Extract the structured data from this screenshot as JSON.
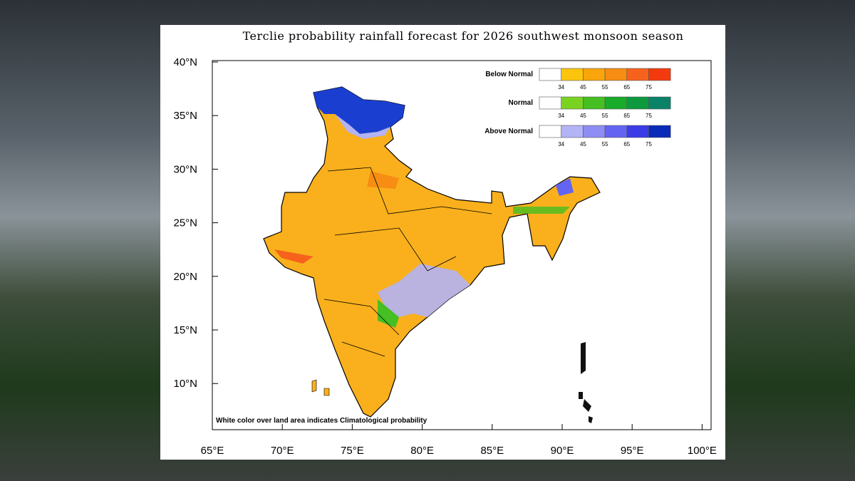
{
  "title": "Terclie probability rainfall forecast for 2026 southwest monsoon  season",
  "lat_labels": [
    "40°N",
    "35°N",
    "30°N",
    "25°N",
    "20°N",
    "15°N",
    "10°N"
  ],
  "lon_labels": [
    "65°E",
    "70°E",
    "75°E",
    "80°E",
    "85°E",
    "90°E",
    "95°E",
    "100°E"
  ],
  "legend": [
    {
      "name": "Below Normal",
      "colors": [
        "#ffffff",
        "#fcc40c",
        "#f9a50b",
        "#f78d12",
        "#f6621c",
        "#f33a0e"
      ],
      "ticks": [
        "34",
        "45",
        "55",
        "65",
        "75"
      ]
    },
    {
      "name": "Normal",
      "colors": [
        "#ffffff",
        "#7bd321",
        "#45bf22",
        "#19ab2a",
        "#0d9a3f",
        "#0a8268"
      ],
      "ticks": [
        "34",
        "45",
        "55",
        "65",
        "75"
      ]
    },
    {
      "name": "Above Normal",
      "colors": [
        "#ffffff",
        "#b3b3f5",
        "#8d8df3",
        "#6464f2",
        "#3b3be8",
        "#0a2ab8"
      ],
      "ticks": [
        "34",
        "45",
        "55",
        "65",
        "75"
      ]
    }
  ],
  "note": "White color over land area indicates Climatological probability"
}
